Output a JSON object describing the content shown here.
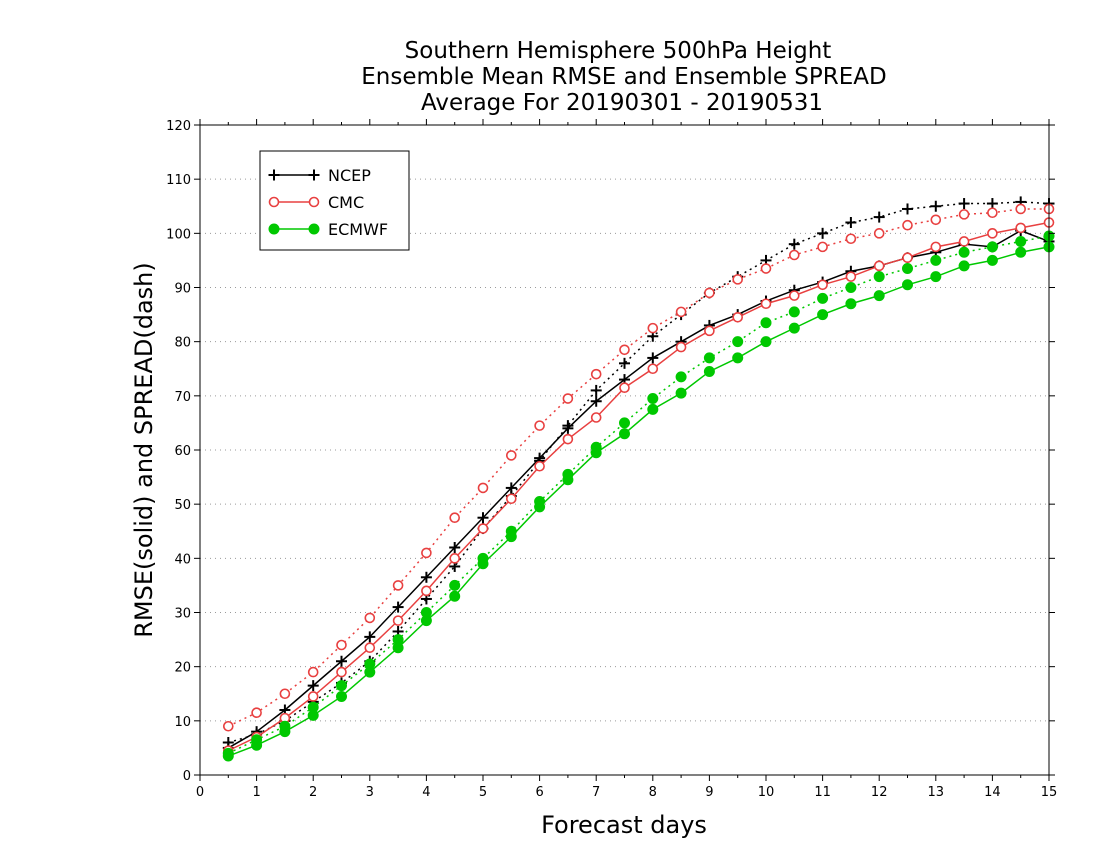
{
  "chart_data": {
    "type": "line",
    "title": [
      "Southern Hemisphere 500hPa Height",
      "Ensemble Mean RMSE and Ensemble SPREAD",
      "Average For 20190301 - 20190531"
    ],
    "xlabel": "Forecast days",
    "ylabel": "RMSE(solid) and SPREAD(dash)",
    "xlim": [
      0,
      15
    ],
    "ylim": [
      0,
      120
    ],
    "xticks": [
      0,
      1,
      2,
      3,
      4,
      5,
      6,
      7,
      8,
      9,
      10,
      11,
      12,
      13,
      14,
      15
    ],
    "yticks": [
      0,
      10,
      20,
      30,
      40,
      50,
      60,
      70,
      80,
      90,
      100,
      110,
      120
    ],
    "grid": true,
    "legend_position": "top-left",
    "x": [
      0.5,
      1,
      1.5,
      2,
      2.5,
      3,
      3.5,
      4,
      4.5,
      5,
      5.5,
      6,
      6.5,
      7,
      7.5,
      8,
      8.5,
      9,
      9.5,
      10,
      10.5,
      11,
      11.5,
      12,
      12.5,
      13,
      13.5,
      14,
      14.5,
      15
    ],
    "series": [
      {
        "name": "NCEP",
        "color": "#000000",
        "marker": "plus",
        "rmse": [
          5,
          8,
          12,
          16.5,
          21,
          25.5,
          31,
          36.5,
          42,
          47.5,
          53,
          58.5,
          64,
          69,
          73,
          77,
          80,
          83,
          85,
          87.5,
          89.5,
          91,
          93,
          94,
          95.5,
          96.5,
          98,
          97.5,
          100.5,
          98.5
        ],
        "spread": [
          6,
          7.5,
          10,
          13.5,
          17,
          21,
          26.5,
          32.5,
          38.5,
          45.5,
          51.5,
          58,
          64.5,
          71,
          76,
          81,
          85,
          89,
          92,
          95,
          98,
          100,
          102,
          103,
          104.5,
          105,
          105.5,
          105.5,
          105.8,
          105.5
        ]
      },
      {
        "name": "CMC",
        "color": "#e84040",
        "marker": "circle-open",
        "rmse": [
          4.5,
          7,
          10.5,
          14.5,
          19,
          23.5,
          28.5,
          34,
          40,
          45.5,
          51,
          57,
          62,
          66,
          71.5,
          75,
          79,
          82,
          84.5,
          87,
          88.5,
          90.5,
          92,
          94,
          95.5,
          97.5,
          98.5,
          100,
          101,
          102
        ],
        "spread": [
          9,
          11.5,
          15,
          19,
          24,
          29,
          35,
          41,
          47.5,
          53,
          59,
          64.5,
          69.5,
          74,
          78.5,
          82.5,
          85.5,
          89,
          91.5,
          93.5,
          96,
          97.5,
          99,
          100,
          101.5,
          102.5,
          103.5,
          103.8,
          104.5,
          104.5
        ]
      },
      {
        "name": "ECMWF",
        "color": "#00c800",
        "marker": "circle-filled",
        "rmse": [
          3.5,
          5.5,
          8,
          11,
          14.5,
          19,
          23.5,
          28.5,
          33,
          39,
          44,
          49.5,
          54.5,
          59.5,
          63,
          67.5,
          70.5,
          74.5,
          77,
          80,
          82.5,
          85,
          87,
          88.5,
          90.5,
          92,
          94,
          95,
          96.5,
          97.5
        ],
        "spread": [
          4,
          6.5,
          9,
          12.5,
          16.5,
          20.5,
          25,
          30,
          35,
          40,
          45,
          50.5,
          55.5,
          60.5,
          65,
          69.5,
          73.5,
          77,
          80,
          83.5,
          85.5,
          88,
          90,
          92,
          93.5,
          95,
          96.5,
          97.5,
          98.5,
          99.5
        ]
      }
    ]
  }
}
